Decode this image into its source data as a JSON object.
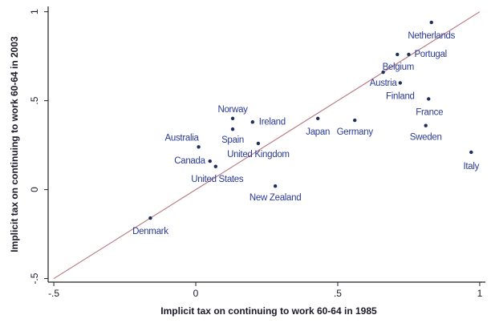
{
  "chart_data": {
    "type": "scatter",
    "x_label": "Implicit tax on continuing to work 60-64 in 1985",
    "y_label": "Implicit tax on continuing to work 60-64 in 2003",
    "xlim": [
      -0.52,
      1.02
    ],
    "ylim": [
      -0.52,
      1.03
    ],
    "xticks": [
      {
        "value": -0.5,
        "label": "-.5"
      },
      0,
      {
        "value": 0.5,
        "label": ".5"
      },
      1
    ],
    "yticks": [
      {
        "value": -0.5,
        "label": "-.5"
      },
      0,
      {
        "value": 0.5,
        "label": ".5"
      },
      1
    ],
    "point_color": "#1f2f5c",
    "label_color": "#2a3a9a",
    "reference_line": {
      "x": [
        -0.5,
        1
      ],
      "y": [
        -0.5,
        1
      ],
      "color": "#b8767e"
    },
    "labels": [
      "Netherlands",
      "Portugal",
      "Belgium",
      "Austria",
      "Finland",
      "France",
      "Sweden",
      "Italy",
      "Germany",
      "Japan",
      "Ireland",
      "Norway",
      "Spain",
      "United Kingdom",
      "Australia",
      "Canada",
      "United States",
      "New Zealand",
      "Denmark"
    ],
    "x": [
      0.83,
      0.75,
      0.71,
      0.66,
      0.72,
      0.82,
      0.81,
      0.97,
      0.56,
      0.43,
      0.2,
      0.13,
      0.13,
      0.22,
      0.01,
      0.05,
      0.07,
      0.28,
      -0.16
    ],
    "y": [
      0.94,
      0.76,
      0.76,
      0.66,
      0.6,
      0.51,
      0.36,
      0.21,
      0.39,
      0.4,
      0.38,
      0.4,
      0.34,
      0.26,
      0.24,
      0.16,
      0.13,
      0.02,
      -0.16
    ]
  }
}
